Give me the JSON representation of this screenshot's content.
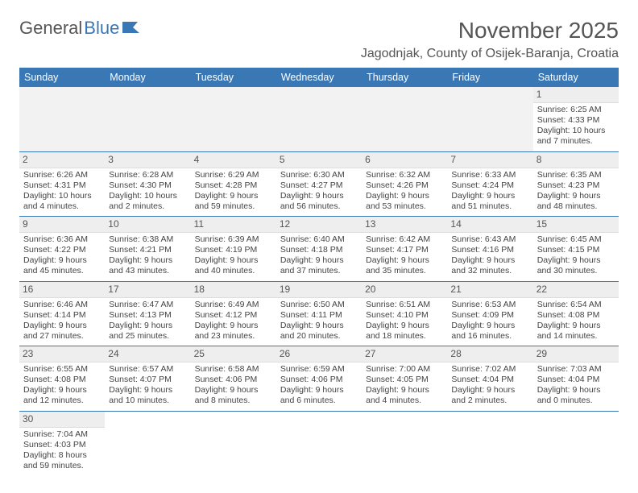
{
  "brand": {
    "part1": "General",
    "part2": "Blue",
    "logo_color": "#3a78b5",
    "text_color": "#555555"
  },
  "title": "November 2025",
  "location": "Jagodnjak, County of Osijek-Baranja, Croatia",
  "colors": {
    "header_bg": "#3a78b5",
    "header_text": "#ffffff",
    "daynum_bg": "#eeeeee",
    "cell_text": "#444444",
    "divider": "#3a78b5"
  },
  "sizes": {
    "title_fontsize": 28,
    "location_fontsize": 16,
    "th_fontsize": 12.5,
    "cell_fontsize": 10.5,
    "daynum_fontsize": 12
  },
  "day_headers": [
    "Sunday",
    "Monday",
    "Tuesday",
    "Wednesday",
    "Thursday",
    "Friday",
    "Saturday"
  ],
  "weeks": [
    [
      null,
      null,
      null,
      null,
      null,
      null,
      {
        "n": "1",
        "sr": "Sunrise: 6:25 AM",
        "ss": "Sunset: 4:33 PM",
        "d1": "Daylight: 10 hours",
        "d2": "and 7 minutes."
      }
    ],
    [
      {
        "n": "2",
        "sr": "Sunrise: 6:26 AM",
        "ss": "Sunset: 4:31 PM",
        "d1": "Daylight: 10 hours",
        "d2": "and 4 minutes."
      },
      {
        "n": "3",
        "sr": "Sunrise: 6:28 AM",
        "ss": "Sunset: 4:30 PM",
        "d1": "Daylight: 10 hours",
        "d2": "and 2 minutes."
      },
      {
        "n": "4",
        "sr": "Sunrise: 6:29 AM",
        "ss": "Sunset: 4:28 PM",
        "d1": "Daylight: 9 hours",
        "d2": "and 59 minutes."
      },
      {
        "n": "5",
        "sr": "Sunrise: 6:30 AM",
        "ss": "Sunset: 4:27 PM",
        "d1": "Daylight: 9 hours",
        "d2": "and 56 minutes."
      },
      {
        "n": "6",
        "sr": "Sunrise: 6:32 AM",
        "ss": "Sunset: 4:26 PM",
        "d1": "Daylight: 9 hours",
        "d2": "and 53 minutes."
      },
      {
        "n": "7",
        "sr": "Sunrise: 6:33 AM",
        "ss": "Sunset: 4:24 PM",
        "d1": "Daylight: 9 hours",
        "d2": "and 51 minutes."
      },
      {
        "n": "8",
        "sr": "Sunrise: 6:35 AM",
        "ss": "Sunset: 4:23 PM",
        "d1": "Daylight: 9 hours",
        "d2": "and 48 minutes."
      }
    ],
    [
      {
        "n": "9",
        "sr": "Sunrise: 6:36 AM",
        "ss": "Sunset: 4:22 PM",
        "d1": "Daylight: 9 hours",
        "d2": "and 45 minutes."
      },
      {
        "n": "10",
        "sr": "Sunrise: 6:38 AM",
        "ss": "Sunset: 4:21 PM",
        "d1": "Daylight: 9 hours",
        "d2": "and 43 minutes."
      },
      {
        "n": "11",
        "sr": "Sunrise: 6:39 AM",
        "ss": "Sunset: 4:19 PM",
        "d1": "Daylight: 9 hours",
        "d2": "and 40 minutes."
      },
      {
        "n": "12",
        "sr": "Sunrise: 6:40 AM",
        "ss": "Sunset: 4:18 PM",
        "d1": "Daylight: 9 hours",
        "d2": "and 37 minutes."
      },
      {
        "n": "13",
        "sr": "Sunrise: 6:42 AM",
        "ss": "Sunset: 4:17 PM",
        "d1": "Daylight: 9 hours",
        "d2": "and 35 minutes."
      },
      {
        "n": "14",
        "sr": "Sunrise: 6:43 AM",
        "ss": "Sunset: 4:16 PM",
        "d1": "Daylight: 9 hours",
        "d2": "and 32 minutes."
      },
      {
        "n": "15",
        "sr": "Sunrise: 6:45 AM",
        "ss": "Sunset: 4:15 PM",
        "d1": "Daylight: 9 hours",
        "d2": "and 30 minutes."
      }
    ],
    [
      {
        "n": "16",
        "sr": "Sunrise: 6:46 AM",
        "ss": "Sunset: 4:14 PM",
        "d1": "Daylight: 9 hours",
        "d2": "and 27 minutes."
      },
      {
        "n": "17",
        "sr": "Sunrise: 6:47 AM",
        "ss": "Sunset: 4:13 PM",
        "d1": "Daylight: 9 hours",
        "d2": "and 25 minutes."
      },
      {
        "n": "18",
        "sr": "Sunrise: 6:49 AM",
        "ss": "Sunset: 4:12 PM",
        "d1": "Daylight: 9 hours",
        "d2": "and 23 minutes."
      },
      {
        "n": "19",
        "sr": "Sunrise: 6:50 AM",
        "ss": "Sunset: 4:11 PM",
        "d1": "Daylight: 9 hours",
        "d2": "and 20 minutes."
      },
      {
        "n": "20",
        "sr": "Sunrise: 6:51 AM",
        "ss": "Sunset: 4:10 PM",
        "d1": "Daylight: 9 hours",
        "d2": "and 18 minutes."
      },
      {
        "n": "21",
        "sr": "Sunrise: 6:53 AM",
        "ss": "Sunset: 4:09 PM",
        "d1": "Daylight: 9 hours",
        "d2": "and 16 minutes."
      },
      {
        "n": "22",
        "sr": "Sunrise: 6:54 AM",
        "ss": "Sunset: 4:08 PM",
        "d1": "Daylight: 9 hours",
        "d2": "and 14 minutes."
      }
    ],
    [
      {
        "n": "23",
        "sr": "Sunrise: 6:55 AM",
        "ss": "Sunset: 4:08 PM",
        "d1": "Daylight: 9 hours",
        "d2": "and 12 minutes."
      },
      {
        "n": "24",
        "sr": "Sunrise: 6:57 AM",
        "ss": "Sunset: 4:07 PM",
        "d1": "Daylight: 9 hours",
        "d2": "and 10 minutes."
      },
      {
        "n": "25",
        "sr": "Sunrise: 6:58 AM",
        "ss": "Sunset: 4:06 PM",
        "d1": "Daylight: 9 hours",
        "d2": "and 8 minutes."
      },
      {
        "n": "26",
        "sr": "Sunrise: 6:59 AM",
        "ss": "Sunset: 4:06 PM",
        "d1": "Daylight: 9 hours",
        "d2": "and 6 minutes."
      },
      {
        "n": "27",
        "sr": "Sunrise: 7:00 AM",
        "ss": "Sunset: 4:05 PM",
        "d1": "Daylight: 9 hours",
        "d2": "and 4 minutes."
      },
      {
        "n": "28",
        "sr": "Sunrise: 7:02 AM",
        "ss": "Sunset: 4:04 PM",
        "d1": "Daylight: 9 hours",
        "d2": "and 2 minutes."
      },
      {
        "n": "29",
        "sr": "Sunrise: 7:03 AM",
        "ss": "Sunset: 4:04 PM",
        "d1": "Daylight: 9 hours",
        "d2": "and 0 minutes."
      }
    ],
    [
      {
        "n": "30",
        "sr": "Sunrise: 7:04 AM",
        "ss": "Sunset: 4:03 PM",
        "d1": "Daylight: 8 hours",
        "d2": "and 59 minutes."
      },
      null,
      null,
      null,
      null,
      null,
      null
    ]
  ]
}
